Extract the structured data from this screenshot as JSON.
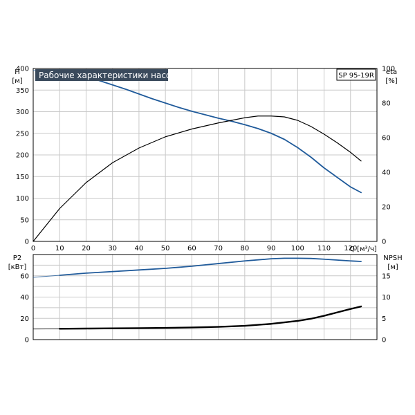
{
  "chart_data": [
    {
      "type": "line",
      "title": "Рабочие характеристики насоса",
      "model_label": "SP 95-19R",
      "ylabel": "H",
      "yunit": "[м]",
      "y2label": "eta",
      "y2unit": "[%]",
      "xlabel": "Q [м³/ч]",
      "xlim": [
        0,
        130
      ],
      "ylim": [
        0,
        400
      ],
      "y2lim": [
        0,
        100
      ],
      "xticks": [
        "0",
        "10",
        "20",
        "30",
        "40",
        "50",
        "60",
        "70",
        "80",
        "90",
        "100",
        "110",
        "120"
      ],
      "yticks": [
        "0",
        "50",
        "100",
        "150",
        "200",
        "250",
        "300",
        "350",
        "400"
      ],
      "y2ticks": [
        "0",
        "20",
        "40",
        "60",
        "80",
        "100"
      ],
      "grid": true,
      "series": [
        {
          "color": "#1f5a9a",
          "axis": "left",
          "x": [
            0,
            8,
            15,
            20,
            25,
            30,
            35,
            40,
            45,
            50,
            55,
            60,
            65,
            70,
            75,
            80,
            85,
            90,
            95,
            100,
            105,
            110,
            115,
            120,
            124
          ],
          "y": [
            395,
            392,
            386,
            380,
            372,
            362,
            352,
            341,
            330,
            320,
            310,
            301,
            293,
            285,
            278,
            270,
            261,
            250,
            236,
            217,
            195,
            170,
            148,
            126,
            113
          ],
          "dashed_until": 8
        },
        {
          "color": "#000000",
          "axis": "right",
          "x": [
            0,
            10,
            20,
            30,
            40,
            50,
            60,
            70,
            80,
            85,
            90,
            95,
            100,
            105,
            110,
            115,
            120,
            124
          ],
          "y": [
            0,
            19,
            34,
            45.5,
            54,
            60.5,
            65,
            68.5,
            71.5,
            72.5,
            72.5,
            72,
            70,
            66.5,
            62,
            57,
            51.5,
            46.5
          ]
        }
      ]
    },
    {
      "type": "line",
      "ylabel": "P2",
      "yunit": "[кВт]",
      "y2label": "NPSH",
      "y2unit": "[м]",
      "xlim": [
        0,
        130
      ],
      "ylim": [
        0,
        80
      ],
      "y2lim": [
        0,
        20
      ],
      "yticks": [
        "0",
        "20",
        "40",
        "60"
      ],
      "y2ticks": [
        "0",
        "5",
        "10",
        "15"
      ],
      "grid": true,
      "series": [
        {
          "color": "#1f5a9a",
          "axis": "left",
          "x": [
            0,
            10,
            20,
            30,
            40,
            50,
            60,
            70,
            80,
            90,
            95,
            100,
            105,
            110,
            115,
            120,
            124
          ],
          "y": [
            58.5,
            60.5,
            62.5,
            64,
            65.5,
            67,
            69,
            71.5,
            74,
            76,
            76.5,
            76.5,
            76.3,
            75.6,
            74.8,
            74,
            73.5
          ],
          "dashed_until": 8
        },
        {
          "color": "#000000",
          "axis": "right",
          "bold": true,
          "x": [
            0,
            10,
            20,
            30,
            40,
            50,
            60,
            70,
            80,
            90,
            100,
            105,
            110,
            115,
            120,
            124
          ],
          "y": [
            2.5,
            2.55,
            2.6,
            2.65,
            2.7,
            2.75,
            2.85,
            3.0,
            3.25,
            3.7,
            4.4,
            4.9,
            5.6,
            6.4,
            7.2,
            7.8
          ],
          "dashed_until": 8
        }
      ]
    }
  ]
}
